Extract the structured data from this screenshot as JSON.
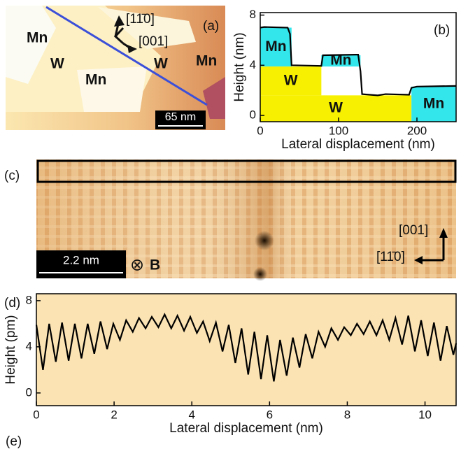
{
  "panels": {
    "a": {
      "label": "(a)",
      "terraces": [
        "Mn",
        "W",
        "Mn",
        "W",
        "Mn"
      ],
      "dir1": "[11̄0]",
      "dir2": "[001]",
      "scale": "65 nm"
    },
    "c": {
      "label": "(c)",
      "scale": "2.2 nm",
      "field_symbol": "⊗",
      "field": "B",
      "dir1": "[001]",
      "dir2": "[11̄0]"
    },
    "e": {
      "label": "(e)"
    }
  },
  "chart_data": [
    {
      "type": "line",
      "label": "(b)",
      "xlabel": "Lateral displacement (nm)",
      "ylabel": "Height (nm)",
      "xlim": [
        0,
        250
      ],
      "ylim": [
        -0.5,
        8.2
      ],
      "xticks": [
        0,
        100,
        200
      ],
      "yticks": [
        0,
        4,
        8
      ],
      "regions": [
        {
          "label": "Mn",
          "color": "#33e6ec",
          "x": [
            0,
            40
          ],
          "y": [
            3.9,
            7.0
          ]
        },
        {
          "label": "W",
          "color": "#f7f000",
          "x": [
            0,
            78
          ],
          "y": [
            1.6,
            3.9
          ]
        },
        {
          "label": "Mn",
          "color": "#33e6ec",
          "x": [
            78,
            128
          ],
          "y": [
            3.9,
            4.8
          ]
        },
        {
          "label": "W",
          "color": "#f7f000",
          "x": [
            0,
            193
          ],
          "y": [
            -0.5,
            1.6
          ]
        },
        {
          "label": "Mn",
          "color": "#33e6ec",
          "x": [
            193,
            250
          ],
          "y": [
            -0.5,
            2.3
          ]
        }
      ],
      "series": [
        {
          "color": "#000000",
          "x": [
            0,
            5,
            35,
            38,
            40,
            78,
            80,
            125,
            128,
            130,
            150,
            160,
            190,
            193,
            200,
            250
          ],
          "values": [
            7.0,
            7.05,
            7.0,
            6.5,
            4.0,
            3.95,
            4.8,
            4.85,
            3.5,
            1.7,
            1.6,
            1.7,
            1.65,
            2.2,
            2.3,
            2.35
          ]
        }
      ]
    },
    {
      "type": "line",
      "label": "(d)",
      "xlabel": "Lateral displacement (nm)",
      "ylabel": "Height (pm)",
      "background": "#fbe3b3",
      "xlim": [
        0,
        10.8
      ],
      "ylim": [
        -1.1,
        8.6
      ],
      "xticks": [
        0,
        2,
        4,
        6,
        8,
        10
      ],
      "yticks": [
        0,
        4,
        8
      ],
      "series": [
        {
          "color": "#000000",
          "x": [
            0,
            0.17,
            0.33,
            0.5,
            0.66,
            0.83,
            0.99,
            1.16,
            1.32,
            1.49,
            1.65,
            1.82,
            1.98,
            2.15,
            2.31,
            2.48,
            2.64,
            2.81,
            2.97,
            3.14,
            3.3,
            3.47,
            3.63,
            3.8,
            3.96,
            4.13,
            4.29,
            4.46,
            4.62,
            4.79,
            4.95,
            5.12,
            5.28,
            5.45,
            5.61,
            5.78,
            5.94,
            6.11,
            6.27,
            6.44,
            6.6,
            6.77,
            6.93,
            7.1,
            7.26,
            7.43,
            7.59,
            7.76,
            7.92,
            8.09,
            8.25,
            8.42,
            8.58,
            8.75,
            8.91,
            9.08,
            9.24,
            9.41,
            9.57,
            9.74,
            9.9,
            10.07,
            10.23,
            10.4,
            10.56,
            10.73,
            10.8
          ],
          "values": [
            5.9,
            2.0,
            6.0,
            2.7,
            6.1,
            2.8,
            6.0,
            3.0,
            6.0,
            3.4,
            6.2,
            3.8,
            6.0,
            4.6,
            6.3,
            5.3,
            6.5,
            5.6,
            6.6,
            5.7,
            6.8,
            5.6,
            6.7,
            5.4,
            6.6,
            5.2,
            6.2,
            4.5,
            6.1,
            3.6,
            5.9,
            2.6,
            5.6,
            1.6,
            5.3,
            1.2,
            5.0,
            1.0,
            4.6,
            1.5,
            4.8,
            2.2,
            5.1,
            3.0,
            5.3,
            4.0,
            5.6,
            4.6,
            5.7,
            5.0,
            6.0,
            5.1,
            6.2,
            5.0,
            6.3,
            4.6,
            6.5,
            4.2,
            6.7,
            3.6,
            6.3,
            3.2,
            6.1,
            2.8,
            5.8,
            3.3,
            4.3
          ]
        }
      ]
    }
  ]
}
